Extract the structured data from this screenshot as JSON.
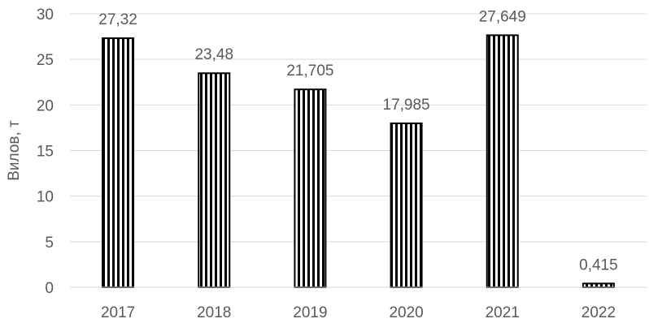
{
  "chart_data": {
    "type": "bar",
    "categories": [
      "2017",
      "2018",
      "2019",
      "2020",
      "2021",
      "2022"
    ],
    "values": [
      27.32,
      23.48,
      21.705,
      17.985,
      27.649,
      0.415
    ],
    "value_labels": [
      "27,32",
      "23,48",
      "21,705",
      "17,985",
      "27,649",
      "0,415"
    ],
    "ylabel": "Вилов, т",
    "ylim": [
      0,
      30
    ],
    "yticks": [
      0,
      5,
      10,
      15,
      20,
      25,
      30
    ],
    "grid": true,
    "bar_fill": "vertical-stripes",
    "colors": {
      "bar": "#000000",
      "axis": "#d9d9d9",
      "grid": "#d9d9d9",
      "text": "#595959"
    }
  }
}
